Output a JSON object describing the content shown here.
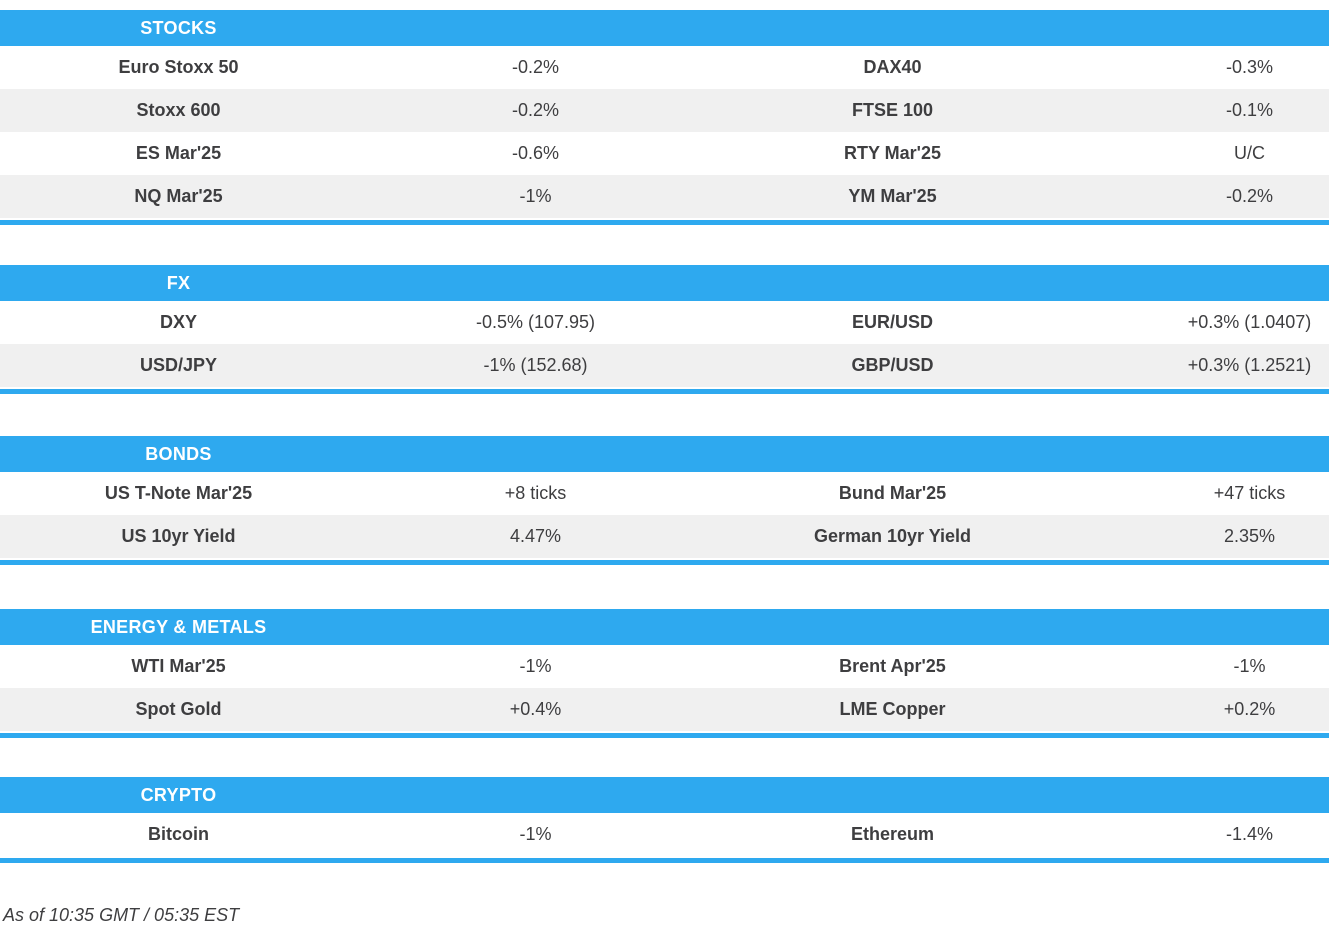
{
  "colors": {
    "accent": "#2ea9ef",
    "row_alt": "#f0f0f0",
    "text": "#3e3e40",
    "header_text": "#ffffff"
  },
  "sections": [
    {
      "title": "STOCKS",
      "rows": [
        [
          "Euro Stoxx 50",
          "-0.2%",
          "DAX40",
          "-0.3%"
        ],
        [
          "Stoxx 600",
          "-0.2%",
          "FTSE 100",
          "-0.1%"
        ],
        [
          "ES Mar'25",
          "-0.6%",
          "RTY Mar'25",
          "U/C"
        ],
        [
          "NQ Mar'25",
          "-1%",
          "YM Mar'25",
          "-0.2%"
        ]
      ]
    },
    {
      "title": "FX",
      "rows": [
        [
          "DXY",
          "-0.5% (107.95)",
          "EUR/USD",
          "+0.3% (1.0407)"
        ],
        [
          "USD/JPY",
          "-1% (152.68)",
          "GBP/USD",
          "+0.3% (1.2521)"
        ]
      ]
    },
    {
      "title": "BONDS",
      "rows": [
        [
          "US T-Note Mar'25",
          "+8 ticks",
          "Bund Mar'25",
          "+47 ticks"
        ],
        [
          "US 10yr Yield",
          "4.47%",
          "German 10yr Yield",
          "2.35%"
        ]
      ]
    },
    {
      "title": "ENERGY & METALS",
      "rows": [
        [
          "WTI Mar'25",
          "-1%",
          "Brent Apr'25",
          "-1%"
        ],
        [
          "Spot Gold",
          "+0.4%",
          "LME Copper",
          "+0.2%"
        ]
      ]
    },
    {
      "title": "CRYPTO",
      "rows": [
        [
          "Bitcoin",
          "-1%",
          "Ethereum",
          "-1.4%"
        ]
      ]
    }
  ],
  "footer": {
    "as_of": "As of 10:35 GMT / 05:35 EST"
  }
}
